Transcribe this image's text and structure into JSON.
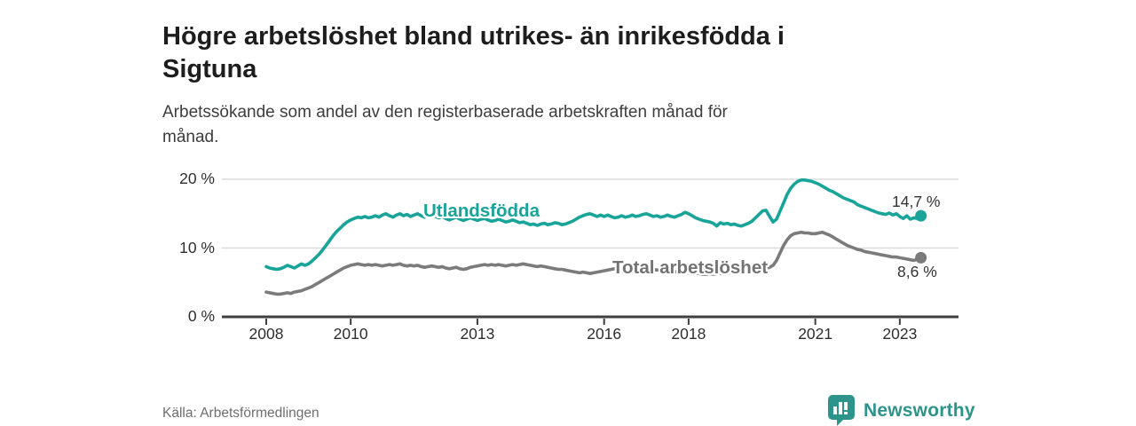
{
  "header": {
    "title": "Högre arbetslöshet bland utrikes- än inrikesfödda i\nSigtuna",
    "subtitle": "Arbetssökande som andel av den registerbaserade arbetskraften månad för\nmånad."
  },
  "footer": {
    "source": "Källa: Arbetsförmedlingen",
    "brand_name": "Newsworthy"
  },
  "colors": {
    "accent_teal": "#19a49a",
    "line_gray": "#7b7b7b",
    "label_gray": "#737373",
    "axis": "#3f3f3f",
    "grid": "#dcdcdc",
    "brand_teal": "#2d948b",
    "title_text": "#1d1d1d",
    "end_label_text": "#333333"
  },
  "chart_data": {
    "type": "line",
    "title": "Högre arbetslöshet bland utrikes- än inrikesfödda i Sigtuna",
    "subtitle": "Arbetssökande som andel av den registerbaserade arbetskraften månad för månad.",
    "xlabel": "",
    "ylabel": "",
    "grid": "horizontal",
    "legend_position": "inline-on-line",
    "xlim": [
      2006.95,
      2024.39
    ],
    "ylim": [
      0,
      22.2
    ],
    "x_ticks": [
      2008,
      2010,
      2013,
      2016,
      2018,
      2021,
      2023
    ],
    "y_ticks": [
      {
        "value": 0,
        "label": "0 %"
      },
      {
        "value": 10,
        "label": "10 %"
      },
      {
        "value": 20,
        "label": "20 %"
      }
    ],
    "x_unit": "year-month",
    "start_year": 2008,
    "interval_months": 1,
    "series": [
      {
        "name": "Utlandsfödda",
        "color": "#19a49a",
        "end_value": 14.7,
        "end_label": "14,7 %",
        "values": [
          7.3,
          7.1,
          7.0,
          6.9,
          7.0,
          7.2,
          7.5,
          7.3,
          7.1,
          7.4,
          7.7,
          7.5,
          7.7,
          8.1,
          8.6,
          9.1,
          9.7,
          10.4,
          11.1,
          11.8,
          12.4,
          12.9,
          13.4,
          13.8,
          14.1,
          14.3,
          14.5,
          14.4,
          14.6,
          14.4,
          14.5,
          14.7,
          14.5,
          14.8,
          15.0,
          14.7,
          14.5,
          14.8,
          15.0,
          14.7,
          14.9,
          14.6,
          14.8,
          15.0,
          14.7,
          14.5,
          14.7,
          14.9,
          14.6,
          14.4,
          14.6,
          14.3,
          14.1,
          14.3,
          14.5,
          14.2,
          14.0,
          14.2,
          14.4,
          14.2,
          14.0,
          14.2,
          14.3,
          14.1,
          13.9,
          14.0,
          14.2,
          14.0,
          13.8,
          13.9,
          14.1,
          13.9,
          13.7,
          13.8,
          13.6,
          13.4,
          13.5,
          13.3,
          13.5,
          13.6,
          13.4,
          13.5,
          13.7,
          13.6,
          13.4,
          13.5,
          13.7,
          13.9,
          14.2,
          14.5,
          14.7,
          14.9,
          15.0,
          14.8,
          14.6,
          14.8,
          14.6,
          14.8,
          14.6,
          14.4,
          14.5,
          14.7,
          14.5,
          14.6,
          14.8,
          14.6,
          14.7,
          14.9,
          15.0,
          14.8,
          14.6,
          14.7,
          14.5,
          14.6,
          14.8,
          14.6,
          14.5,
          14.7,
          14.9,
          15.2,
          15.0,
          14.7,
          14.4,
          14.2,
          14.0,
          13.9,
          13.8,
          13.6,
          13.2,
          13.7,
          13.5,
          13.6,
          13.4,
          13.5,
          13.3,
          13.2,
          13.4,
          13.6,
          13.9,
          14.4,
          14.9,
          15.4,
          15.5,
          14.6,
          13.8,
          14.2,
          15.4,
          16.6,
          17.8,
          18.7,
          19.3,
          19.7,
          19.9,
          19.9,
          19.8,
          19.7,
          19.5,
          19.3,
          19.0,
          18.7,
          18.4,
          18.2,
          17.9,
          17.6,
          17.3,
          17.1,
          16.9,
          16.7,
          16.3,
          16.1,
          15.9,
          15.7,
          15.5,
          15.3,
          15.1,
          15.0,
          14.9,
          15.1,
          14.8,
          15.0,
          14.6,
          14.3,
          14.7,
          14.2,
          14.4,
          14.3,
          14.7
        ]
      },
      {
        "name": "Total arbetslöshet",
        "color": "#7b7b7b",
        "end_value": 8.6,
        "end_label": "8,6 %",
        "values": [
          3.6,
          3.5,
          3.4,
          3.3,
          3.3,
          3.4,
          3.5,
          3.4,
          3.6,
          3.7,
          3.8,
          4.0,
          4.2,
          4.4,
          4.7,
          5.0,
          5.3,
          5.6,
          5.9,
          6.2,
          6.5,
          6.8,
          7.1,
          7.3,
          7.5,
          7.6,
          7.7,
          7.6,
          7.5,
          7.6,
          7.5,
          7.6,
          7.5,
          7.4,
          7.5,
          7.6,
          7.5,
          7.6,
          7.7,
          7.5,
          7.4,
          7.5,
          7.4,
          7.5,
          7.3,
          7.2,
          7.3,
          7.4,
          7.3,
          7.2,
          7.3,
          7.1,
          7.0,
          7.1,
          7.2,
          7.0,
          6.9,
          7.0,
          7.2,
          7.3,
          7.4,
          7.5,
          7.6,
          7.5,
          7.6,
          7.5,
          7.6,
          7.5,
          7.4,
          7.5,
          7.6,
          7.5,
          7.6,
          7.7,
          7.6,
          7.5,
          7.4,
          7.3,
          7.4,
          7.3,
          7.2,
          7.1,
          7.0,
          6.9,
          6.9,
          6.8,
          6.7,
          6.6,
          6.5,
          6.4,
          6.5,
          6.4,
          6.3,
          6.4,
          6.5,
          6.6,
          6.7,
          6.8,
          6.9,
          7.0,
          6.9,
          7.0,
          7.1,
          7.0,
          6.9,
          7.0,
          7.1,
          7.0,
          7.0,
          6.9,
          6.9,
          6.8,
          6.8,
          6.7,
          6.7,
          6.6,
          6.6,
          6.5,
          6.5,
          6.4,
          6.4,
          6.4,
          6.3,
          6.3,
          6.2,
          6.2,
          6.3,
          6.2,
          6.3,
          6.3,
          6.4,
          6.4,
          6.4,
          6.5,
          6.5,
          6.5,
          6.6,
          6.6,
          6.7,
          6.8,
          6.9,
          7.0,
          7.1,
          7.2,
          7.5,
          8.2,
          9.3,
          10.4,
          11.2,
          11.8,
          12.1,
          12.2,
          12.3,
          12.2,
          12.2,
          12.1,
          12.1,
          12.2,
          12.3,
          12.1,
          11.9,
          11.6,
          11.3,
          11.0,
          10.7,
          10.4,
          10.2,
          10.0,
          9.8,
          9.7,
          9.5,
          9.4,
          9.3,
          9.2,
          9.1,
          9.0,
          8.9,
          8.8,
          8.7,
          8.7,
          8.6,
          8.5,
          8.4,
          8.3,
          8.2,
          8.4,
          8.6
        ]
      }
    ]
  }
}
